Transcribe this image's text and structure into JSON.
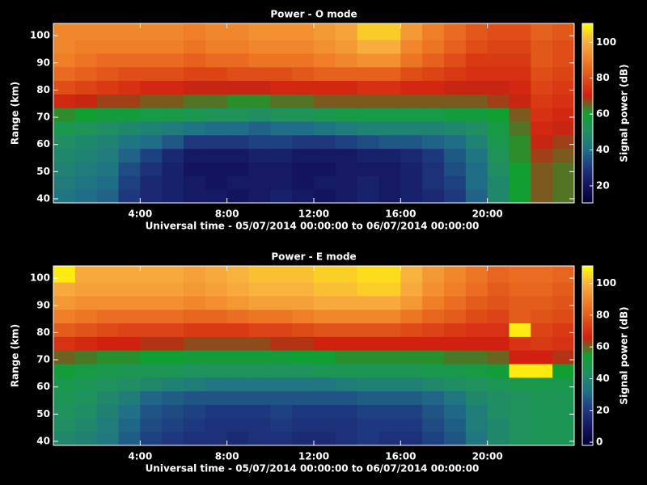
{
  "chart_data": [
    {
      "type": "heatmap",
      "title": "Power - O mode",
      "xlabel": "Universal time - 05/07/2014 00:00:00 to 06/07/2014 00:00:00",
      "ylabel": "Range (km)",
      "colorbar_label": "Signal power (dB)",
      "xlim": [
        0,
        24
      ],
      "ylim": [
        38.5,
        104.5
      ],
      "clim": [
        10.5,
        110.5
      ],
      "xticks": [
        {
          "value": 4,
          "label": "4:00"
        },
        {
          "value": 8,
          "label": "8:00"
        },
        {
          "value": 12,
          "label": "12:00"
        },
        {
          "value": 16,
          "label": "16:00"
        },
        {
          "value": 20,
          "label": "20:00"
        }
      ],
      "yticks": [
        40,
        50,
        60,
        70,
        80,
        90,
        100
      ],
      "cticks": [
        20,
        40,
        60,
        80,
        100
      ],
      "colormap": [
        "#000030",
        "#141460",
        "#1e3a80",
        "#207088",
        "#209060",
        "#10a030",
        "#d02010",
        "#e05018",
        "#f08028",
        "#f8b040",
        "#ffff00"
      ],
      "xbins": [
        0,
        1,
        2,
        3,
        4,
        5,
        6,
        7,
        8,
        9,
        10,
        11,
        12,
        13,
        14,
        15,
        16,
        17,
        18,
        19,
        20,
        21,
        22,
        23,
        24
      ],
      "ybins": [
        38.5,
        43.5,
        48.5,
        53.5,
        58.5,
        63.5,
        68.5,
        73.5,
        78.5,
        83.5,
        88.5,
        93.5,
        98.5,
        104.5
      ],
      "z": [
        [
          42,
          40,
          38,
          30,
          26,
          24,
          22,
          22,
          20,
          22,
          24,
          22,
          20,
          22,
          24,
          22,
          24,
          26,
          30,
          38,
          48,
          60,
          66,
          64
        ],
        [
          44,
          42,
          40,
          32,
          26,
          24,
          22,
          20,
          22,
          22,
          22,
          20,
          22,
          22,
          24,
          22,
          24,
          28,
          32,
          40,
          48,
          60,
          66,
          64
        ],
        [
          46,
          44,
          42,
          34,
          28,
          24,
          20,
          20,
          20,
          22,
          22,
          20,
          20,
          22,
          22,
          22,
          24,
          28,
          34,
          40,
          50,
          60,
          66,
          64
        ],
        [
          48,
          46,
          44,
          38,
          32,
          26,
          22,
          22,
          22,
          24,
          24,
          22,
          22,
          22,
          24,
          24,
          26,
          30,
          36,
          42,
          52,
          62,
          68,
          66
        ],
        [
          50,
          48,
          46,
          42,
          40,
          36,
          30,
          30,
          30,
          32,
          32,
          30,
          30,
          32,
          34,
          36,
          36,
          38,
          40,
          46,
          54,
          62,
          70,
          68
        ],
        [
          54,
          52,
          50,
          48,
          46,
          44,
          42,
          40,
          40,
          38,
          40,
          40,
          42,
          44,
          46,
          46,
          46,
          46,
          48,
          50,
          56,
          64,
          72,
          70
        ],
        [
          62,
          60,
          58,
          58,
          56,
          56,
          54,
          52,
          52,
          50,
          52,
          52,
          54,
          56,
          56,
          56,
          56,
          56,
          58,
          58,
          60,
          66,
          74,
          72
        ],
        [
          72,
          70,
          68,
          68,
          66,
          66,
          64,
          64,
          62,
          62,
          64,
          64,
          66,
          66,
          66,
          66,
          66,
          66,
          66,
          66,
          68,
          70,
          76,
          74
        ],
        [
          80,
          78,
          76,
          74,
          72,
          72,
          70,
          70,
          70,
          70,
          72,
          72,
          72,
          72,
          74,
          74,
          72,
          72,
          70,
          70,
          70,
          72,
          78,
          76
        ],
        [
          86,
          84,
          82,
          80,
          80,
          80,
          78,
          78,
          80,
          80,
          80,
          82,
          84,
          84,
          84,
          84,
          80,
          78,
          76,
          74,
          74,
          74,
          80,
          78
        ],
        [
          90,
          88,
          86,
          86,
          86,
          86,
          84,
          86,
          86,
          88,
          88,
          88,
          90,
          92,
          94,
          94,
          88,
          84,
          80,
          76,
          76,
          76,
          82,
          80
        ],
        [
          92,
          90,
          90,
          90,
          90,
          90,
          88,
          90,
          90,
          92,
          92,
          92,
          94,
          96,
          100,
          100,
          92,
          88,
          84,
          80,
          78,
          78,
          82,
          80
        ],
        [
          92,
          92,
          92,
          92,
          92,
          92,
          90,
          92,
          92,
          94,
          94,
          94,
          96,
          98,
          104,
          104,
          96,
          90,
          86,
          82,
          80,
          80,
          84,
          82
        ]
      ]
    },
    {
      "type": "heatmap",
      "title": "Power - E mode",
      "xlabel": "Universal time - 05/07/2014 00:00:00 to 06/07/2014 00:00:00",
      "ylabel": "Range (km)",
      "colorbar_label": "Signal power (dB)",
      "xlim": [
        0,
        24
      ],
      "ylim": [
        38.5,
        104.5
      ],
      "clim": [
        -2,
        111
      ],
      "xticks": [
        {
          "value": 4,
          "label": "4:00"
        },
        {
          "value": 8,
          "label": "8:00"
        },
        {
          "value": 12,
          "label": "12:00"
        },
        {
          "value": 16,
          "label": "16:00"
        },
        {
          "value": 20,
          "label": "20:00"
        }
      ],
      "yticks": [
        40,
        50,
        60,
        70,
        80,
        90,
        100
      ],
      "cticks": [
        0,
        20,
        40,
        60,
        80,
        100
      ],
      "colormap": [
        "#000030",
        "#141460",
        "#1e3a80",
        "#207088",
        "#209060",
        "#10a030",
        "#d02010",
        "#e05018",
        "#f08028",
        "#f8b040",
        "#ffff00"
      ],
      "xbins": [
        0,
        1,
        2,
        3,
        4,
        5,
        6,
        7,
        8,
        9,
        10,
        11,
        12,
        13,
        14,
        15,
        16,
        17,
        18,
        19,
        20,
        21,
        22,
        23,
        24
      ],
      "ybins": [
        38.5,
        43.5,
        48.5,
        53.5,
        58.5,
        63.5,
        68.5,
        73.5,
        78.5,
        83.5,
        88.5,
        93.5,
        98.5,
        104.5
      ],
      "z": [
        [
          40,
          38,
          35,
          28,
          22,
          20,
          18,
          18,
          16,
          18,
          18,
          16,
          16,
          18,
          20,
          18,
          18,
          22,
          26,
          34,
          40,
          44,
          46,
          46
        ],
        [
          42,
          40,
          36,
          30,
          24,
          22,
          20,
          18,
          18,
          18,
          20,
          18,
          18,
          18,
          20,
          20,
          20,
          24,
          28,
          36,
          40,
          44,
          46,
          46
        ],
        [
          44,
          42,
          38,
          32,
          26,
          24,
          22,
          20,
          20,
          20,
          22,
          20,
          20,
          20,
          22,
          22,
          22,
          26,
          30,
          36,
          42,
          44,
          46,
          46
        ],
        [
          46,
          44,
          40,
          36,
          30,
          28,
          26,
          26,
          26,
          26,
          26,
          26,
          26,
          26,
          28,
          28,
          28,
          30,
          34,
          40,
          42,
          44,
          46,
          46
        ],
        [
          48,
          46,
          44,
          42,
          40,
          38,
          36,
          34,
          34,
          34,
          34,
          34,
          34,
          36,
          38,
          38,
          38,
          40,
          42,
          44,
          46,
          48,
          48,
          48
        ],
        [
          52,
          50,
          48,
          46,
          46,
          46,
          44,
          44,
          44,
          44,
          44,
          44,
          46,
          46,
          46,
          46,
          46,
          48,
          48,
          50,
          52,
          108,
          108,
          54
        ],
        [
          60,
          58,
          56,
          56,
          54,
          54,
          52,
          52,
          52,
          52,
          52,
          54,
          54,
          56,
          56,
          56,
          56,
          56,
          58,
          58,
          60,
          66,
          66,
          64
        ],
        [
          70,
          68,
          66,
          66,
          64,
          64,
          62,
          62,
          62,
          62,
          64,
          64,
          66,
          66,
          66,
          66,
          66,
          66,
          66,
          66,
          66,
          70,
          72,
          70
        ],
        [
          80,
          78,
          76,
          74,
          74,
          74,
          72,
          72,
          72,
          74,
          74,
          76,
          78,
          78,
          78,
          78,
          76,
          74,
          72,
          70,
          70,
          108,
          74,
          72
        ],
        [
          88,
          86,
          84,
          84,
          84,
          84,
          82,
          82,
          84,
          86,
          86,
          88,
          90,
          90,
          90,
          90,
          86,
          82,
          80,
          76,
          74,
          80,
          78,
          76
        ],
        [
          94,
          92,
          92,
          92,
          92,
          92,
          90,
          92,
          94,
          96,
          96,
          96,
          98,
          98,
          98,
          98,
          94,
          88,
          84,
          80,
          78,
          80,
          80,
          78
        ],
        [
          98,
          96,
          96,
          96,
          96,
          96,
          94,
          96,
          98,
          100,
          100,
          100,
          102,
          102,
          104,
          104,
          98,
          92,
          88,
          84,
          80,
          82,
          82,
          80
        ],
        [
          108,
          98,
          98,
          98,
          98,
          98,
          96,
          98,
          100,
          102,
          102,
          102,
          104,
          104,
          106,
          106,
          100,
          94,
          90,
          86,
          82,
          84,
          84,
          82
        ]
      ]
    }
  ]
}
